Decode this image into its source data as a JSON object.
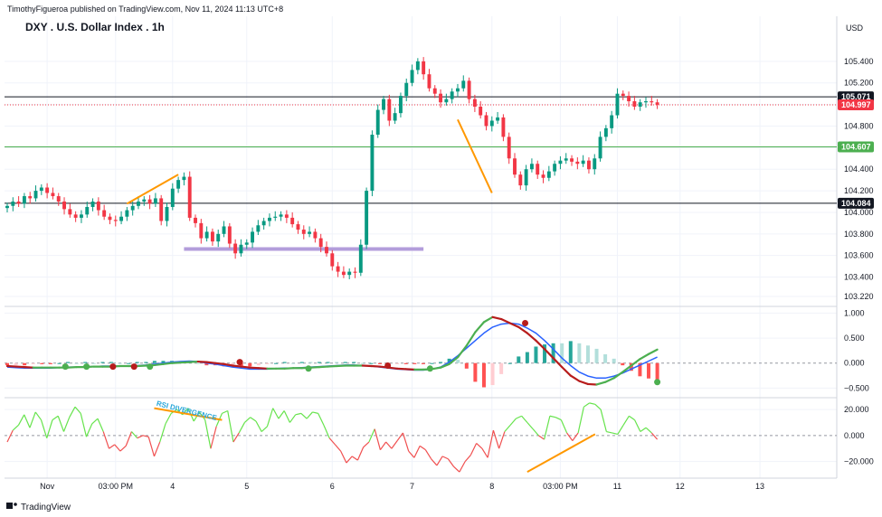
{
  "header": {
    "published": "TimothyFigueroa published on TradingView.com, Nov 11, 2024 11:13 UTC+8",
    "title": "DXY . U.S. Dollar Index . 1h",
    "currency": "USD",
    "brand": "TradingView"
  },
  "colors": {
    "up": "#089981",
    "down": "#f23645",
    "macd_line": "#2962ff",
    "signal_green": "#4caf50",
    "signal_red": "#b71c1c",
    "orange": "#ff9800",
    "support": "#b39ddb",
    "green_level": "#4caf50",
    "rsi_up": "#66e34c",
    "rsi_down": "#f05050",
    "annotation": "#2aa7d9"
  },
  "chart_data": [
    {
      "type": "candlestick",
      "panel": "price",
      "title": "DXY . U.S. Dollar Index . 1h",
      "yaxis_ticks": [
        105.4,
        105.2,
        105.0,
        104.8,
        104.6,
        104.4,
        104.2,
        104.0,
        103.8,
        103.6,
        103.4,
        103.22
      ],
      "yaxis_tick_labels": [
        "105.400",
        "105.200",
        "",
        "104.800",
        "",
        "104.400",
        "104.200",
        "104.000",
        "103.800",
        "103.600",
        "103.400",
        "103.220"
      ],
      "ylim": [
        103.17,
        105.6
      ],
      "x_ticks": [
        "Nov",
        "03:00 PM",
        "4",
        "5",
        "6",
        "7",
        "8",
        "03:00 PM",
        "11",
        "12",
        "13"
      ],
      "x_tick_positions": [
        7,
        19,
        29,
        42,
        57,
        71,
        85,
        97,
        107,
        118,
        132
      ],
      "levels": [
        {
          "name": "resistance-line",
          "price": 105.071,
          "label": "105.071",
          "color": "#131722",
          "style": "solid"
        },
        {
          "name": "last-price-line",
          "price": 104.997,
          "label": "104.997",
          "color": "#f23645",
          "style": "dotted"
        },
        {
          "name": "green-level-line",
          "price": 104.607,
          "label": "104.607",
          "color": "#4caf50",
          "style": "solid"
        },
        {
          "name": "support-line",
          "price": 104.084,
          "label": "104.084",
          "color": "#131722",
          "style": "solid"
        }
      ],
      "zone": {
        "price": 103.66,
        "from_index": 31,
        "to_index": 73,
        "color": "#b39ddb"
      },
      "trendlines": [
        {
          "from": [
            21,
            104.08
          ],
          "to": [
            30,
            104.35
          ],
          "color": "#ff9800"
        },
        {
          "from": [
            79,
            104.86
          ],
          "to": [
            85,
            104.18
          ],
          "color": "#ff9800"
        }
      ],
      "closes": [
        104.06,
        104.1,
        104.08,
        104.15,
        104.13,
        104.2,
        104.23,
        104.18,
        104.15,
        104.1,
        104.03,
        103.98,
        103.95,
        103.98,
        104.05,
        104.1,
        104.02,
        103.96,
        103.93,
        103.92,
        103.96,
        104.02,
        104.06,
        104.1,
        104.12,
        104.08,
        104.13,
        103.92,
        104.05,
        104.22,
        104.3,
        104.33,
        103.95,
        103.9,
        103.76,
        103.82,
        103.73,
        103.8,
        103.87,
        103.71,
        103.62,
        103.7,
        103.72,
        103.82,
        103.88,
        103.92,
        103.95,
        103.96,
        103.98,
        103.95,
        103.89,
        103.84,
        103.8,
        103.82,
        103.76,
        103.68,
        103.62,
        103.5,
        103.45,
        103.42,
        103.45,
        103.44,
        103.7,
        104.2,
        104.72,
        104.95,
        105.05,
        104.85,
        104.92,
        105.08,
        105.2,
        105.32,
        105.4,
        105.28,
        105.15,
        105.1,
        105.02,
        105.05,
        105.12,
        105.15,
        105.22,
        105.05,
        104.98,
        104.9,
        104.8,
        104.85,
        104.88,
        104.7,
        104.5,
        104.35,
        104.25,
        104.4,
        104.45,
        104.35,
        104.32,
        104.38,
        104.45,
        104.48,
        104.5,
        104.47,
        104.45,
        104.48,
        104.4,
        104.5,
        104.7,
        104.78,
        104.9,
        105.1,
        105.08,
        105.03,
        104.98,
        105.02,
        105.03,
        105.02,
        104.998
      ],
      "x_index_range": [
        0,
        145
      ]
    },
    {
      "type": "line",
      "panel": "macd",
      "yaxis_ticks": [
        1.0,
        0.5,
        0.0,
        -0.5
      ],
      "yaxis_tick_labels": [
        "1.000",
        "0.500",
        "0.000",
        "−0.500"
      ],
      "ylim": [
        -0.62,
        1.08
      ],
      "macd": [
        -0.08,
        -0.09,
        -0.1,
        -0.1,
        -0.1,
        -0.1,
        -0.09,
        -0.08,
        -0.08,
        -0.07,
        -0.07,
        -0.06,
        -0.06,
        -0.06,
        -0.06,
        -0.05,
        -0.04,
        -0.02,
        0.0,
        0.02,
        0.03,
        0.04,
        0.03,
        0.0,
        -0.02,
        -0.05,
        -0.08,
        -0.1,
        -0.12,
        -0.12,
        -0.12,
        -0.11,
        -0.1,
        -0.1,
        -0.09,
        -0.08,
        -0.07,
        -0.06,
        -0.05,
        -0.04,
        -0.04,
        -0.05,
        -0.06,
        -0.08,
        -0.1,
        -0.12,
        -0.13,
        -0.14,
        -0.14,
        -0.12,
        -0.08,
        0.02,
        0.15,
        0.3,
        0.45,
        0.6,
        0.72,
        0.78,
        0.8,
        0.78,
        0.7,
        0.6,
        0.45,
        0.28,
        0.1,
        -0.05,
        -0.18,
        -0.26,
        -0.3,
        -0.3,
        -0.26,
        -0.2,
        -0.12,
        -0.04,
        0.04,
        0.12
      ],
      "signal": [
        -0.06,
        -0.07,
        -0.08,
        -0.09,
        -0.09,
        -0.09,
        -0.09,
        -0.09,
        -0.08,
        -0.08,
        -0.07,
        -0.07,
        -0.07,
        -0.06,
        -0.06,
        -0.06,
        -0.05,
        -0.04,
        -0.02,
        0.0,
        0.01,
        0.02,
        0.03,
        0.02,
        0.0,
        -0.02,
        -0.05,
        -0.07,
        -0.09,
        -0.1,
        -0.11,
        -0.11,
        -0.11,
        -0.1,
        -0.1,
        -0.09,
        -0.08,
        -0.07,
        -0.06,
        -0.05,
        -0.05,
        -0.05,
        -0.06,
        -0.07,
        -0.09,
        -0.11,
        -0.12,
        -0.13,
        -0.13,
        -0.12,
        -0.09,
        -0.02,
        0.12,
        0.35,
        0.62,
        0.82,
        0.92,
        0.88,
        0.8,
        0.72,
        0.6,
        0.45,
        0.28,
        0.1,
        -0.08,
        -0.25,
        -0.36,
        -0.42,
        -0.43,
        -0.38,
        -0.3,
        -0.18,
        -0.05,
        0.08,
        0.18,
        0.27
      ],
      "cross_points": [
        {
          "i": 11,
          "v": -0.07,
          "c": "green"
        },
        {
          "i": 15,
          "v": -0.07,
          "c": "green"
        },
        {
          "i": 20,
          "v": -0.07,
          "c": "red"
        },
        {
          "i": 24,
          "v": -0.07,
          "c": "red"
        },
        {
          "i": 27,
          "v": -0.07,
          "c": "green"
        },
        {
          "i": 44,
          "v": 0.02,
          "c": "red"
        },
        {
          "i": 57,
          "v": -0.11,
          "c": "green"
        },
        {
          "i": 72,
          "v": -0.05,
          "c": "red"
        },
        {
          "i": 80,
          "v": -0.11,
          "c": "green"
        },
        {
          "i": 98,
          "v": 0.8,
          "c": "red"
        },
        {
          "i": 123,
          "v": -0.38,
          "c": "green"
        }
      ]
    },
    {
      "type": "line",
      "panel": "rsi",
      "yaxis_ticks": [
        20.0,
        0.0,
        -20.0
      ],
      "yaxis_tick_labels": [
        "20.000",
        "0.000",
        "−20.000"
      ],
      "ylim": [
        -30,
        27
      ],
      "annotation": "RSI DIVERGENCE",
      "rsi": [
        -5,
        4,
        8,
        16,
        6,
        18,
        12,
        -2,
        12,
        15,
        3,
        14,
        22,
        17,
        -1,
        9,
        13,
        3,
        -10,
        -7,
        -12,
        -8,
        3,
        -2,
        0,
        -1,
        -16,
        -5,
        9,
        17,
        20,
        16,
        21,
        11,
        18,
        12,
        -10,
        7,
        17,
        19,
        -5,
        2,
        10,
        14,
        11,
        3,
        7,
        21,
        13,
        19,
        10,
        16,
        17,
        13,
        18,
        17,
        8,
        -2,
        -7,
        -12,
        -21,
        -16,
        -19,
        -9,
        -5,
        5,
        -11,
        -5,
        -10,
        -4,
        2,
        -12,
        -17,
        -8,
        -11,
        -18,
        -23,
        -16,
        -18,
        -24,
        -28,
        -20,
        -15,
        -6,
        -10,
        -17,
        4,
        -10,
        3,
        8,
        13,
        15,
        10,
        5,
        0,
        -3,
        15,
        14,
        12,
        2,
        -4,
        2,
        22,
        25,
        24,
        20,
        3,
        2,
        1,
        8,
        15,
        12,
        3,
        6,
        2,
        -3
      ],
      "divergence_line_1": {
        "from": [
          26,
          21
        ],
        "to": [
          38,
          12
        ],
        "color": "#ff9800"
      },
      "divergence_line_2": {
        "from": [
          92,
          -28
        ],
        "to": [
          104,
          1
        ],
        "color": "#ff9800"
      }
    }
  ]
}
